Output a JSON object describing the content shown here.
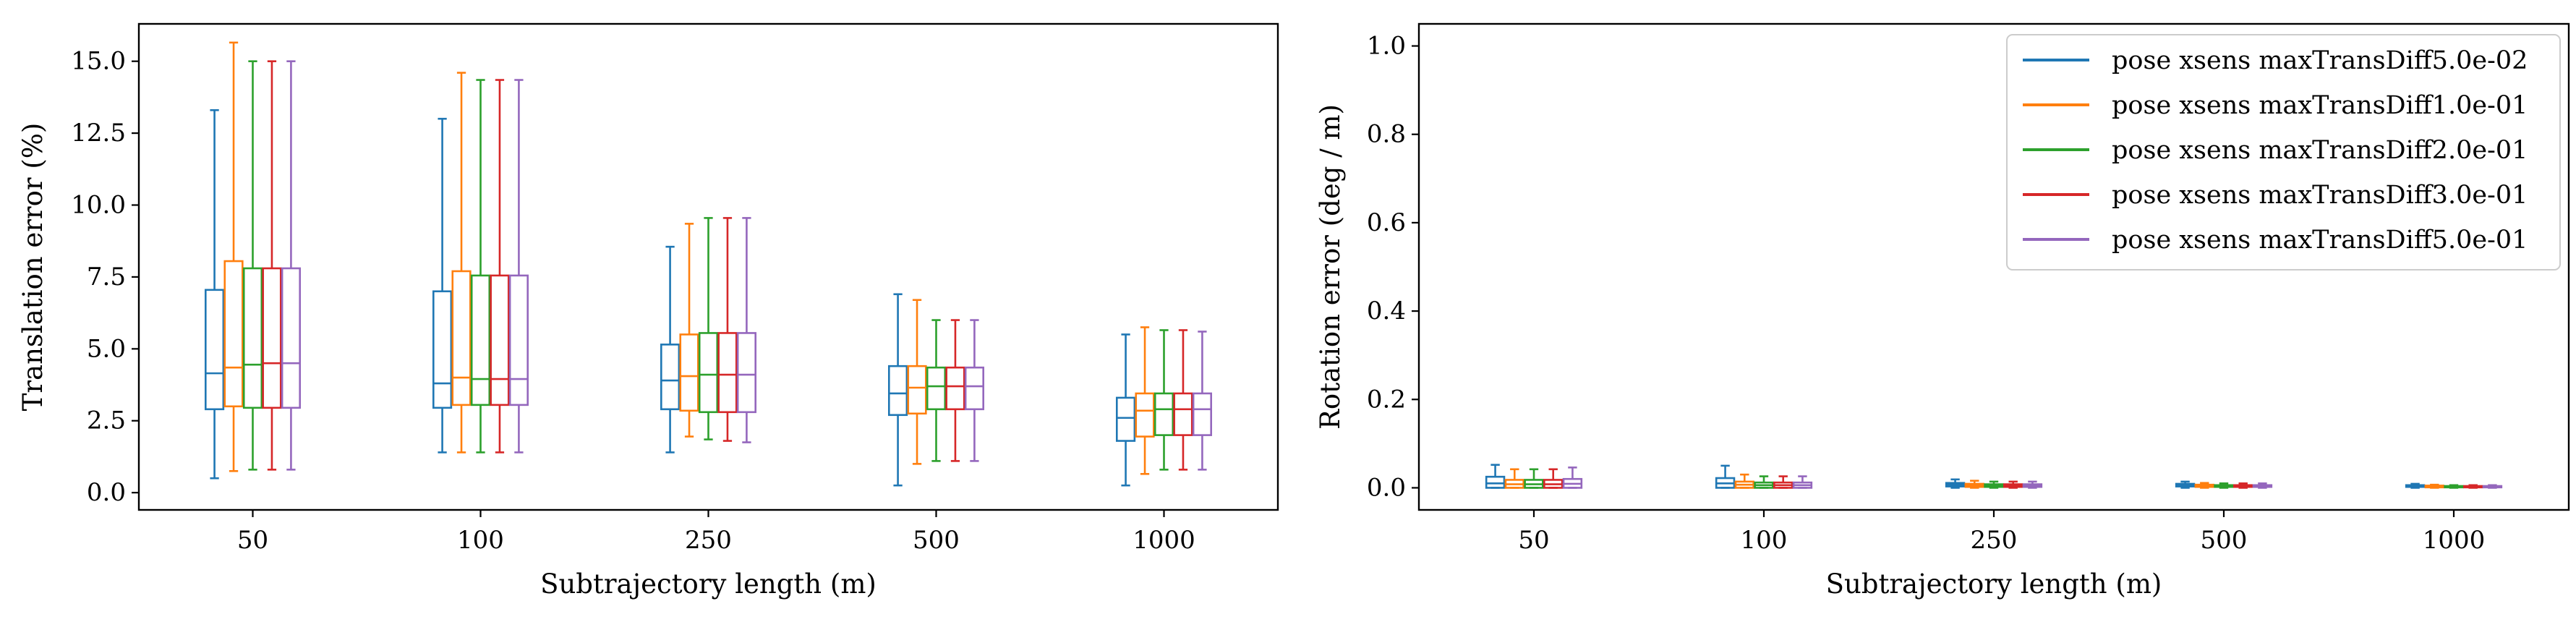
{
  "colors": {
    "series": [
      "#1f77b4",
      "#ff7f0e",
      "#2ca02c",
      "#d62728",
      "#9467bd"
    ],
    "axis": "#000000",
    "background": "#ffffff",
    "legend_border": "#cccccc"
  },
  "chart_data": [
    {
      "type": "box",
      "title": "",
      "xlabel": "Subtrajectory length (m)",
      "ylabel": "Translation error (%)",
      "ylim": [
        -0.6,
        16.3
      ],
      "yticks": [
        0.0,
        2.5,
        5.0,
        7.5,
        10.0,
        12.5,
        15.0
      ],
      "ytick_labels": [
        "0.0",
        "2.5",
        "5.0",
        "7.5",
        "10.0",
        "12.5",
        "15.0"
      ],
      "categories": [
        "50",
        "100",
        "250",
        "500",
        "1000"
      ],
      "grid": false,
      "legend": "none",
      "series": [
        {
          "name": "pose xsens maxTransDiff5.0e-02",
          "boxes": [
            {
              "whislo": 0.5,
              "q1": 2.9,
              "med": 4.15,
              "q3": 7.05,
              "whishi": 13.3
            },
            {
              "whislo": 1.4,
              "q1": 2.95,
              "med": 3.8,
              "q3": 7.0,
              "whishi": 13.0
            },
            {
              "whislo": 1.4,
              "q1": 2.9,
              "med": 3.9,
              "q3": 5.15,
              "whishi": 8.55
            },
            {
              "whislo": 0.25,
              "q1": 2.7,
              "med": 3.45,
              "q3": 4.4,
              "whishi": 6.9
            },
            {
              "whislo": 0.25,
              "q1": 1.8,
              "med": 2.6,
              "q3": 3.3,
              "whishi": 5.5
            }
          ]
        },
        {
          "name": "pose xsens maxTransDiff1.0e-01",
          "boxes": [
            {
              "whislo": 0.75,
              "q1": 3.0,
              "med": 4.35,
              "q3": 8.05,
              "whishi": 15.65
            },
            {
              "whislo": 1.4,
              "q1": 3.05,
              "med": 4.0,
              "q3": 7.7,
              "whishi": 14.6
            },
            {
              "whislo": 1.95,
              "q1": 2.85,
              "med": 4.05,
              "q3": 5.5,
              "whishi": 9.35
            },
            {
              "whislo": 1.0,
              "q1": 2.75,
              "med": 3.65,
              "q3": 4.4,
              "whishi": 6.7
            },
            {
              "whislo": 0.65,
              "q1": 1.95,
              "med": 2.85,
              "q3": 3.45,
              "whishi": 5.75
            }
          ]
        },
        {
          "name": "pose xsens maxTransDiff2.0e-01",
          "boxes": [
            {
              "whislo": 0.8,
              "q1": 2.95,
              "med": 4.45,
              "q3": 7.8,
              "whishi": 15.0
            },
            {
              "whislo": 1.4,
              "q1": 3.05,
              "med": 3.95,
              "q3": 7.55,
              "whishi": 14.35
            },
            {
              "whislo": 1.85,
              "q1": 2.8,
              "med": 4.1,
              "q3": 5.55,
              "whishi": 9.55
            },
            {
              "whislo": 1.1,
              "q1": 2.9,
              "med": 3.7,
              "q3": 4.35,
              "whishi": 6.0
            },
            {
              "whislo": 0.8,
              "q1": 2.0,
              "med": 2.9,
              "q3": 3.45,
              "whishi": 5.65
            }
          ]
        },
        {
          "name": "pose xsens maxTransDiff3.0e-01",
          "boxes": [
            {
              "whislo": 0.8,
              "q1": 2.95,
              "med": 4.5,
              "q3": 7.8,
              "whishi": 15.0
            },
            {
              "whislo": 1.4,
              "q1": 3.05,
              "med": 3.95,
              "q3": 7.55,
              "whishi": 14.35
            },
            {
              "whislo": 1.8,
              "q1": 2.8,
              "med": 4.1,
              "q3": 5.55,
              "whishi": 9.55
            },
            {
              "whislo": 1.1,
              "q1": 2.9,
              "med": 3.7,
              "q3": 4.35,
              "whishi": 6.0
            },
            {
              "whislo": 0.8,
              "q1": 2.0,
              "med": 2.9,
              "q3": 3.45,
              "whishi": 5.65
            }
          ]
        },
        {
          "name": "pose xsens maxTransDiff5.0e-01",
          "boxes": [
            {
              "whislo": 0.8,
              "q1": 2.95,
              "med": 4.5,
              "q3": 7.8,
              "whishi": 15.0
            },
            {
              "whislo": 1.4,
              "q1": 3.05,
              "med": 3.95,
              "q3": 7.55,
              "whishi": 14.35
            },
            {
              "whislo": 1.75,
              "q1": 2.8,
              "med": 4.1,
              "q3": 5.55,
              "whishi": 9.55
            },
            {
              "whislo": 1.1,
              "q1": 2.9,
              "med": 3.7,
              "q3": 4.35,
              "whishi": 6.0
            },
            {
              "whislo": 0.8,
              "q1": 2.0,
              "med": 2.9,
              "q3": 3.45,
              "whishi": 5.6
            }
          ]
        }
      ]
    },
    {
      "type": "box",
      "title": "",
      "xlabel": "Subtrajectory length (m)",
      "ylabel": "Rotation error (deg / m)",
      "ylim": [
        -0.05,
        1.05
      ],
      "yticks": [
        0.0,
        0.2,
        0.4,
        0.6,
        0.8,
        1.0
      ],
      "ytick_labels": [
        "0.0",
        "0.2",
        "0.4",
        "0.6",
        "0.8",
        "1.0"
      ],
      "categories": [
        "50",
        "100",
        "250",
        "500",
        "1000"
      ],
      "grid": false,
      "legend": "top-right",
      "series": [
        {
          "name": "pose xsens maxTransDiff5.0e-02",
          "boxes": [
            {
              "whislo": 0.0,
              "q1": 0.0,
              "med": 0.01,
              "q3": 0.025,
              "whishi": 0.052
            },
            {
              "whislo": 0.0,
              "q1": 0.0,
              "med": 0.01,
              "q3": 0.022,
              "whishi": 0.05
            },
            {
              "whislo": 0.0,
              "q1": 0.003,
              "med": 0.007,
              "q3": 0.011,
              "whishi": 0.019
            },
            {
              "whislo": 0.0,
              "q1": 0.003,
              "med": 0.006,
              "q3": 0.009,
              "whishi": 0.014
            },
            {
              "whislo": 0.0,
              "q1": 0.002,
              "med": 0.004,
              "q3": 0.006,
              "whishi": 0.009
            }
          ]
        },
        {
          "name": "pose xsens maxTransDiff1.0e-01",
          "boxes": [
            {
              "whislo": 0.0,
              "q1": 0.0,
              "med": 0.008,
              "q3": 0.018,
              "whishi": 0.042
            },
            {
              "whislo": 0.0,
              "q1": 0.0,
              "med": 0.007,
              "q3": 0.014,
              "whishi": 0.03
            },
            {
              "whislo": 0.0,
              "q1": 0.002,
              "med": 0.006,
              "q3": 0.009,
              "whishi": 0.016
            },
            {
              "whislo": 0.0,
              "q1": 0.002,
              "med": 0.005,
              "q3": 0.007,
              "whishi": 0.011
            },
            {
              "whislo": 0.0,
              "q1": 0.001,
              "med": 0.003,
              "q3": 0.005,
              "whishi": 0.007
            }
          ]
        },
        {
          "name": "pose xsens maxTransDiff2.0e-01",
          "boxes": [
            {
              "whislo": 0.0,
              "q1": 0.0,
              "med": 0.008,
              "q3": 0.018,
              "whishi": 0.042
            },
            {
              "whislo": 0.0,
              "q1": 0.0,
              "med": 0.006,
              "q3": 0.012,
              "whishi": 0.026
            },
            {
              "whislo": 0.0,
              "q1": 0.002,
              "med": 0.005,
              "q3": 0.008,
              "whishi": 0.014
            },
            {
              "whislo": 0.0,
              "q1": 0.002,
              "med": 0.004,
              "q3": 0.006,
              "whishi": 0.01
            },
            {
              "whislo": 0.0,
              "q1": 0.001,
              "med": 0.003,
              "q3": 0.004,
              "whishi": 0.006
            }
          ]
        },
        {
          "name": "pose xsens maxTransDiff3.0e-01",
          "boxes": [
            {
              "whislo": 0.0,
              "q1": 0.0,
              "med": 0.008,
              "q3": 0.018,
              "whishi": 0.042
            },
            {
              "whislo": 0.0,
              "q1": 0.0,
              "med": 0.006,
              "q3": 0.012,
              "whishi": 0.026
            },
            {
              "whislo": 0.0,
              "q1": 0.002,
              "med": 0.005,
              "q3": 0.008,
              "whishi": 0.014
            },
            {
              "whislo": 0.0,
              "q1": 0.002,
              "med": 0.004,
              "q3": 0.006,
              "whishi": 0.01
            },
            {
              "whislo": 0.0,
              "q1": 0.001,
              "med": 0.003,
              "q3": 0.004,
              "whishi": 0.006
            }
          ]
        },
        {
          "name": "pose xsens maxTransDiff5.0e-01",
          "boxes": [
            {
              "whislo": 0.0,
              "q1": 0.0,
              "med": 0.009,
              "q3": 0.02,
              "whishi": 0.046
            },
            {
              "whislo": 0.0,
              "q1": 0.0,
              "med": 0.006,
              "q3": 0.012,
              "whishi": 0.026
            },
            {
              "whislo": 0.0,
              "q1": 0.002,
              "med": 0.005,
              "q3": 0.008,
              "whishi": 0.014
            },
            {
              "whislo": 0.0,
              "q1": 0.002,
              "med": 0.004,
              "q3": 0.006,
              "whishi": 0.01
            },
            {
              "whislo": 0.0,
              "q1": 0.001,
              "med": 0.003,
              "q3": 0.004,
              "whishi": 0.006
            }
          ]
        }
      ]
    }
  ]
}
